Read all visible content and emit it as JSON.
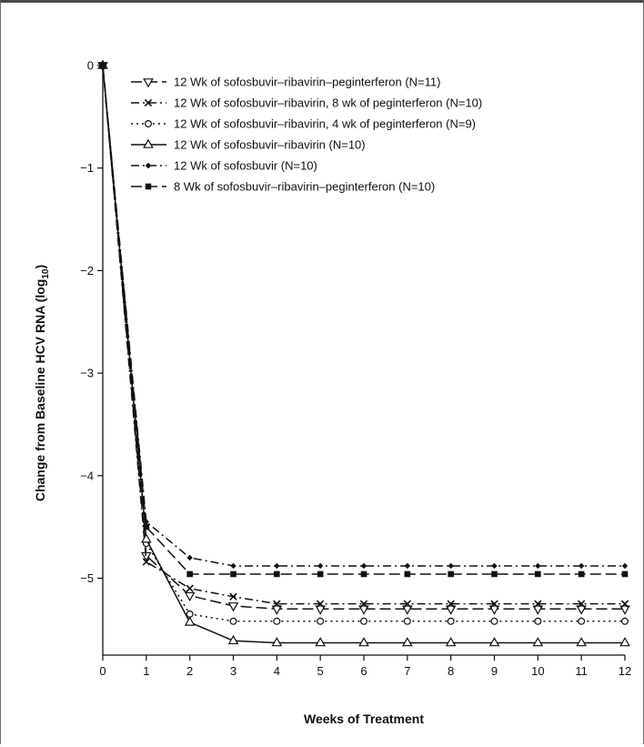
{
  "chart_data": {
    "type": "line",
    "xlabel": "Weeks of Treatment",
    "ylabel": "Change from Baseline HCV RNA (log",
    "ylabel_subscript": "10",
    "ylabel_suffix": ")",
    "xlim": [
      0,
      12
    ],
    "ylim": [
      -5.75,
      0
    ],
    "x_ticks": [
      0,
      1,
      2,
      3,
      4,
      5,
      6,
      7,
      8,
      9,
      10,
      11,
      12
    ],
    "y_ticks": [
      0,
      -1,
      -2,
      -3,
      -4,
      -5
    ],
    "y_tick_labels": [
      "0",
      "−1",
      "−2",
      "−3",
      "−4",
      "−5"
    ],
    "grid": false,
    "legend_position": "top-right",
    "x": [
      0,
      1,
      2,
      3,
      4,
      5,
      6,
      7,
      8,
      9,
      10,
      11,
      12
    ],
    "series": [
      {
        "name": "12 Wk of sofosbuvir–ribavirin–peginterferon (N=11)",
        "marker": "triangle-down",
        "dash": "long-dash",
        "values": [
          0,
          -4.78,
          -5.17,
          -5.27,
          -5.3,
          -5.3,
          -5.3,
          -5.3,
          -5.3,
          -5.3,
          -5.3,
          -5.3,
          -5.3
        ]
      },
      {
        "name": "12 Wk of sofosbuvir–ribavirin, 8 wk of peginterferon (N=10)",
        "marker": "x",
        "dash": "dash-dot",
        "values": [
          0,
          -4.84,
          -5.1,
          -5.18,
          -5.25,
          -5.25,
          -5.25,
          -5.25,
          -5.25,
          -5.25,
          -5.25,
          -5.25,
          -5.25
        ]
      },
      {
        "name": "12 Wk of sofosbuvir–ribavirin, 4 wk of peginterferon (N=9)",
        "marker": "circle-open",
        "dash": "dotted",
        "values": [
          0,
          -4.66,
          -5.35,
          -5.42,
          -5.42,
          -5.42,
          -5.42,
          -5.42,
          -5.42,
          -5.42,
          -5.42,
          -5.42,
          -5.42
        ]
      },
      {
        "name": "12 Wk of sofosbuvir–ribavirin (N=10)",
        "marker": "triangle-up",
        "dash": "solid",
        "values": [
          0,
          -4.62,
          -5.43,
          -5.61,
          -5.63,
          -5.63,
          -5.63,
          -5.63,
          -5.63,
          -5.63,
          -5.63,
          -5.63,
          -5.63
        ]
      },
      {
        "name": "12 Wk of sofosbuvir (N=10)",
        "marker": "diamond",
        "dash": "dash-dot",
        "values": [
          0,
          -4.45,
          -4.8,
          -4.88,
          -4.88,
          -4.88,
          -4.88,
          -4.88,
          -4.88,
          -4.88,
          -4.88,
          -4.88,
          -4.88
        ]
      },
      {
        "name": "8 Wk of sofosbuvir–ribavirin–peginterferon (N=10)",
        "marker": "square",
        "dash": "long-dash",
        "values": [
          0,
          -4.5,
          -4.96,
          -4.96,
          -4.96,
          -4.96,
          -4.96,
          -4.96,
          -4.96,
          -4.96,
          -4.96,
          -4.96,
          -4.96
        ]
      }
    ]
  }
}
